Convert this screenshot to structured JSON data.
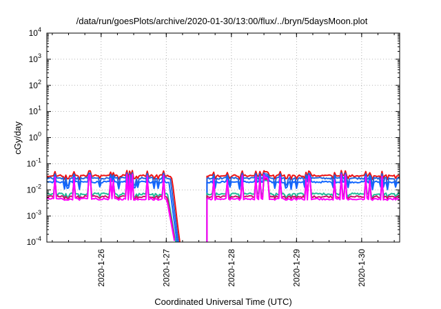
{
  "chart_data": {
    "type": "line",
    "title": "/data/run/goesPlots/archive/2020-01-30/13:00/flux/../bryn/5daysMoon.plot",
    "xlabel": "Coordinated Universal Time (UTC)",
    "ylabel": "cGy/day",
    "y_scale": "log",
    "ylim": [
      0.0001,
      10000
    ],
    "xlim_days": [
      "2020-01-25T04:00",
      "2020-01-30T14:00"
    ],
    "grid": true,
    "legend": "none",
    "x_ticks": [
      "2020-1-26",
      "2020-1-27",
      "2020-1-28",
      "2020-1-29",
      "2020-1-30"
    ],
    "y_ticks": [
      {
        "base": "10",
        "exp": "-4",
        "value": 0.0001
      },
      {
        "base": "10",
        "exp": "-3",
        "value": 0.001
      },
      {
        "base": "10",
        "exp": "-2",
        "value": 0.01
      },
      {
        "base": "10",
        "exp": "-1",
        "value": 0.1
      },
      {
        "base": "10",
        "exp": "0",
        "value": 1
      },
      {
        "base": "10",
        "exp": "1",
        "value": 10
      },
      {
        "base": "10",
        "exp": "2",
        "value": 100
      },
      {
        "base": "10",
        "exp": "3",
        "value": 1000
      },
      {
        "base": "10",
        "exp": "4",
        "value": 10000
      }
    ],
    "gap": {
      "start": "2020-01-27T06:00",
      "end": "2020-01-27T15:00"
    },
    "series": [
      {
        "color": "#ee1111",
        "base": 0.035,
        "spike_max": 0.055,
        "dip_min": 0.025,
        "decay_end": "2020-01-27T05:00"
      },
      {
        "color": "#2266dd",
        "base": 0.028,
        "spike_max": 0.045,
        "dip_min": 0.012,
        "decay_end": "2020-01-27T04:30"
      },
      {
        "color": "#1166ff",
        "base": 0.02,
        "spike_max": 0.04,
        "dip_min": 0.01,
        "decay_end": "2020-01-27T04:00"
      },
      {
        "color": "#22bb99",
        "base": 0.007,
        "spike_max": 0.03,
        "dip_min": 0.005,
        "decay_end": "2020-01-27T03:30"
      },
      {
        "color": "#cc1166",
        "base": 0.0055,
        "spike_max": 0.035,
        "dip_min": 0.0045,
        "decay_end": "2020-01-27T03:20"
      },
      {
        "color": "#ff00ff",
        "base": 0.0045,
        "spike_max": 0.04,
        "dip_min": 0.004,
        "decay_end": "2020-01-27T03:10"
      }
    ]
  }
}
